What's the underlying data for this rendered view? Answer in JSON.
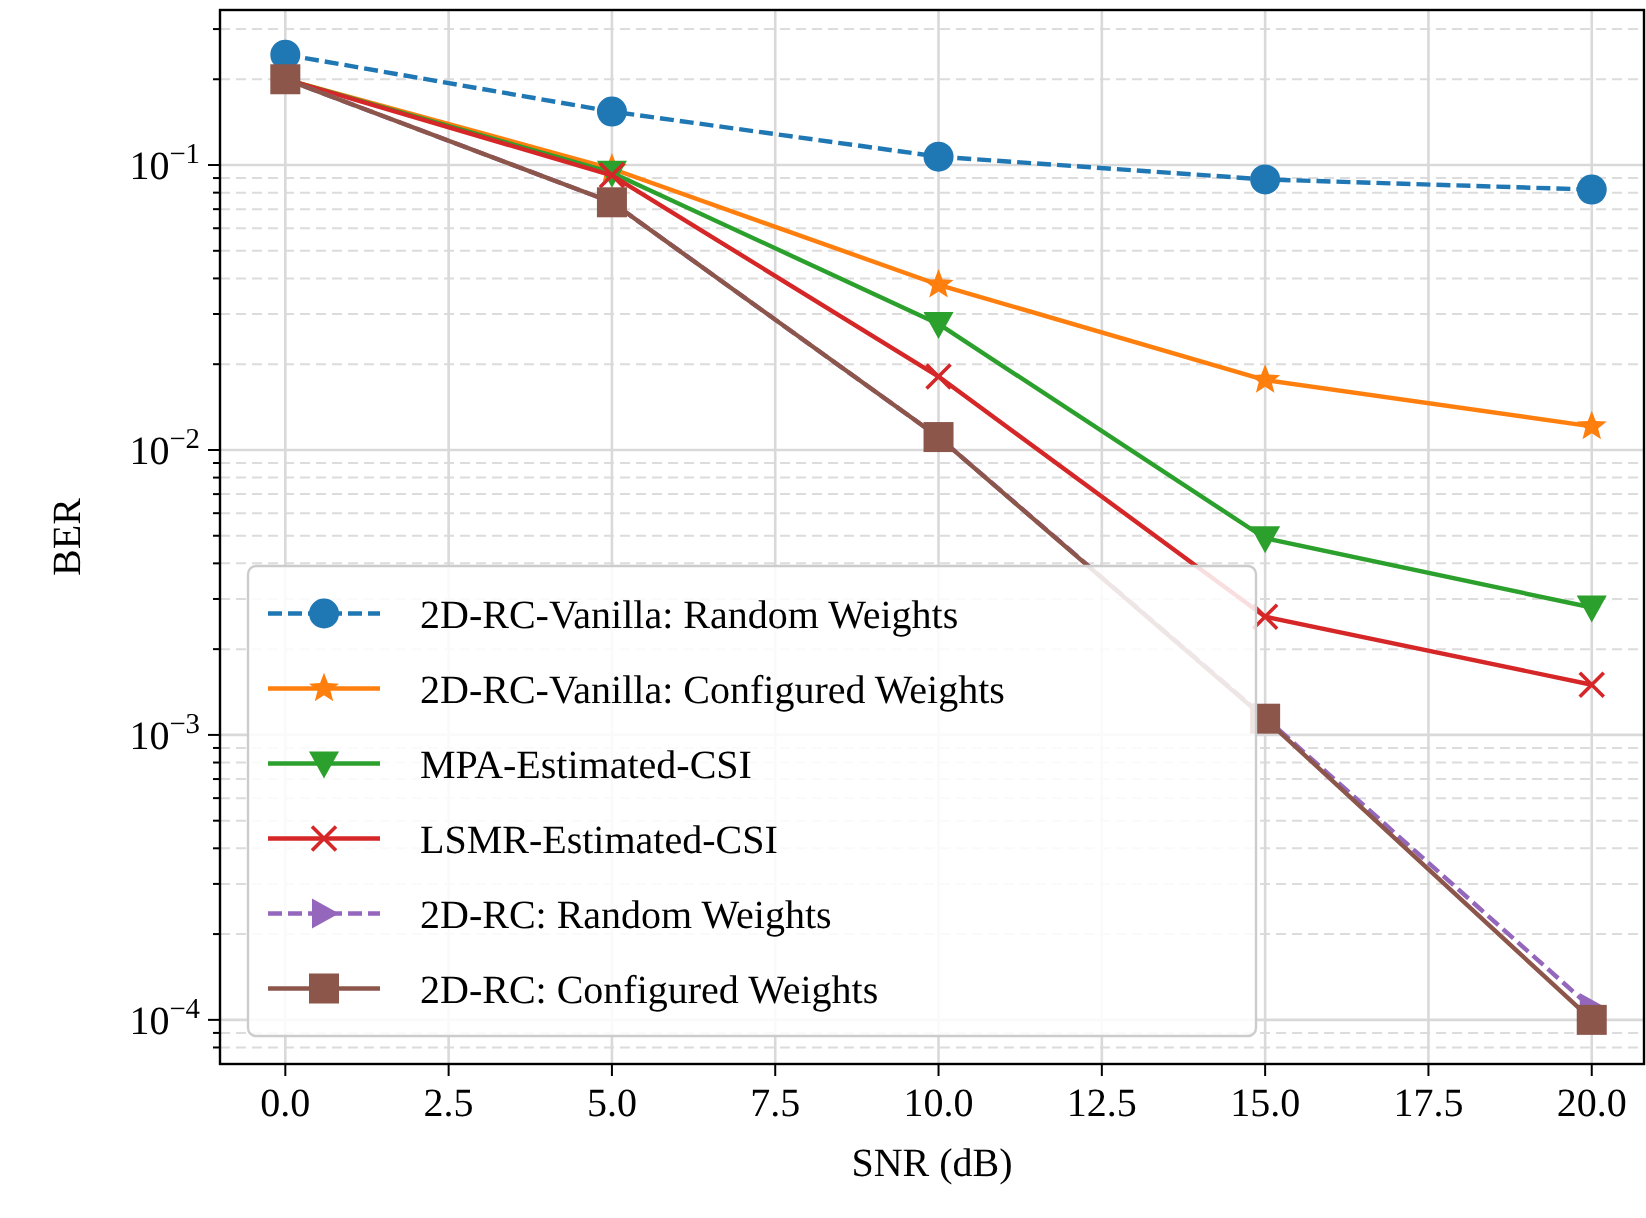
{
  "chart_data": {
    "type": "line",
    "xlabel": "SNR (dB)",
    "ylabel": "BER",
    "log": "y",
    "grid": true,
    "legend": "bottom left",
    "x": [
      0,
      5,
      10,
      15,
      20
    ],
    "xlim": [
      -1,
      20.8
    ],
    "xticks": [
      {
        "value": 0,
        "label": "0.0"
      },
      {
        "value": 2.5,
        "label": "2.5"
      },
      {
        "value": 5,
        "label": "5.0"
      },
      {
        "value": 7.5,
        "label": "7.5"
      },
      {
        "value": 10,
        "label": "10.0"
      },
      {
        "value": 12.5,
        "label": "12.5"
      },
      {
        "value": 15,
        "label": "15.0"
      },
      {
        "value": 17.5,
        "label": "17.5"
      },
      {
        "value": 20,
        "label": "20.0"
      }
    ],
    "ylim": [
      7e-05,
      0.35
    ],
    "yticks": [
      {
        "value": 0.0001,
        "label": "10$^{−4}$"
      },
      {
        "value": 0.001,
        "label": "10$^{−3}$"
      },
      {
        "value": 0.01,
        "label": "10$^{−2}$"
      },
      {
        "value": 0.1,
        "label": "10$^{−1}$"
      },
      {
        "value": 8e-05,
        "label": null
      },
      {
        "value": 9e-05,
        "label": null
      },
      {
        "value": 0.0002,
        "label": null
      },
      {
        "value": 0.0003,
        "label": null
      },
      {
        "value": 0.0004,
        "label": null
      },
      {
        "value": 0.0005,
        "label": null
      },
      {
        "value": 0.0006,
        "label": null
      },
      {
        "value": 0.0007,
        "label": null
      },
      {
        "value": 0.0008,
        "label": null
      },
      {
        "value": 0.0009,
        "label": null
      },
      {
        "value": 0.002,
        "label": null
      },
      {
        "value": 0.003,
        "label": null
      },
      {
        "value": 0.004,
        "label": null
      },
      {
        "value": 0.005,
        "label": null
      },
      {
        "value": 0.006,
        "label": null
      },
      {
        "value": 0.007,
        "label": null
      },
      {
        "value": 0.008,
        "label": null
      },
      {
        "value": 0.009,
        "label": null
      },
      {
        "value": 0.02,
        "label": null
      },
      {
        "value": 0.03,
        "label": null
      },
      {
        "value": 0.04,
        "label": null
      },
      {
        "value": 0.05,
        "label": null
      },
      {
        "value": 0.06,
        "label": null
      },
      {
        "value": 0.07,
        "label": null
      },
      {
        "value": 0.08,
        "label": null
      },
      {
        "value": 0.09,
        "label": null
      },
      {
        "value": 0.2,
        "label": null
      },
      {
        "value": 0.3,
        "label": null
      }
    ],
    "series": [
      {
        "name": "2D-RC-Vanilla: Random Weights",
        "color": "#1f77b4",
        "marker": "circle",
        "line_style": "dashed",
        "values": [
          0.244,
          0.154,
          0.107,
          0.089,
          0.082
        ]
      },
      {
        "name": "2D-RC-Vanilla: Configured Weights",
        "color": "#ff7f0e",
        "marker": "star",
        "line_style": "solid",
        "values": [
          0.2,
          0.097,
          0.038,
          0.0176,
          0.0121
        ]
      },
      {
        "name": "MPA-Estimated-CSI",
        "color": "#2ca02c",
        "marker": "triangle",
        "line_style": "solid",
        "values": [
          0.2,
          0.094,
          0.0277,
          0.0049,
          0.0028
        ]
      },
      {
        "name": "LSMR-Estimated-CSI",
        "color": "#d62728",
        "marker": "cross",
        "line_style": "solid",
        "values": [
          0.2,
          0.092,
          0.0181,
          0.0026,
          0.0015
        ]
      },
      {
        "name": "2D-RC: Random Weights",
        "color": "#9467bd",
        "marker": "triangle-right",
        "line_style": "dashed",
        "values": [
          0.2,
          0.074,
          0.0111,
          0.00115,
          0.00011
        ]
      },
      {
        "name": "2D-RC: Configured Weights",
        "color": "#8c564b",
        "marker": "square",
        "line_style": "solid",
        "values": [
          0.2,
          0.074,
          0.0111,
          0.00114,
          0.0001
        ]
      }
    ]
  }
}
